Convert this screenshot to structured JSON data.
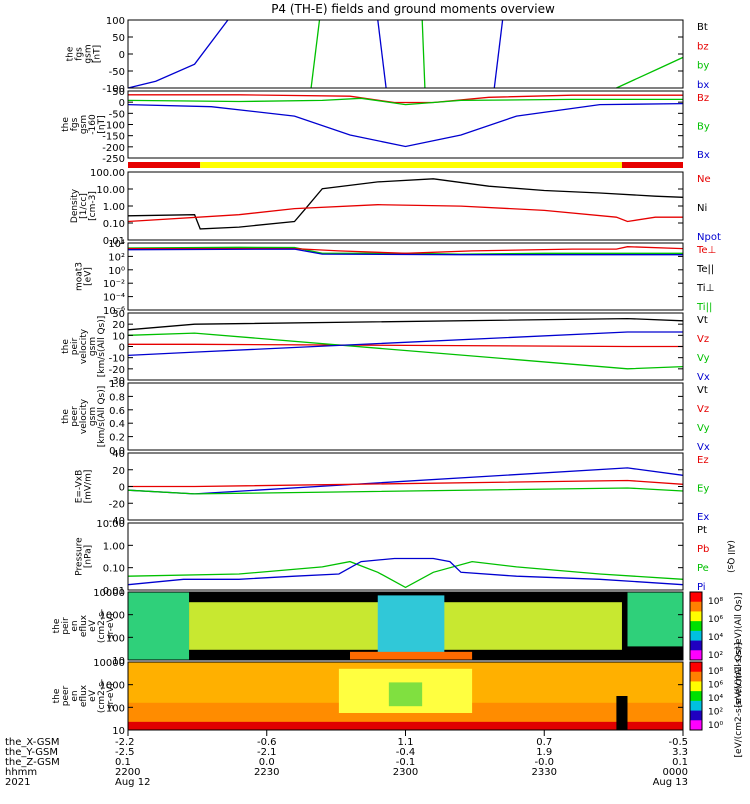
{
  "title": "P4 (TH-E) fields and ground moments overview",
  "colors": {
    "black": "#000000",
    "red": "#e60000",
    "green": "#00c000",
    "blue": "#0000d0",
    "yellow": "#ffff00",
    "orange": "#ff8c00"
  },
  "chart_data": [
    {
      "type": "line",
      "name": "fgs",
      "ylabel": [
        "the",
        "fgs",
        "gsm",
        "[nT]"
      ],
      "ylim": [
        -100,
        100
      ],
      "yticks": [
        "100",
        "50",
        "0",
        "-50",
        "-100"
      ],
      "legend": [
        {
          "label": "Bt",
          "color": "#000000"
        },
        {
          "label": "bz",
          "color": "#e60000"
        },
        {
          "label": "by",
          "color": "#00c000"
        },
        {
          "label": "bx",
          "color": "#0000d0"
        }
      ],
      "series": [
        {
          "name": "bx",
          "color": "#0000d0",
          "x": [
            0,
            0.05,
            0.12,
            0.18
          ],
          "y": [
            -100,
            -80,
            -30,
            100
          ]
        },
        {
          "name": "bx",
          "color": "#0000d0",
          "x": [
            0.45,
            0.465
          ],
          "y": [
            100,
            -100
          ]
        },
        {
          "name": "bx",
          "color": "#0000d0",
          "x": [
            0.66,
            0.675
          ],
          "y": [
            -100,
            100
          ]
        },
        {
          "name": "by",
          "color": "#00c000",
          "x": [
            0.33,
            0.345
          ],
          "y": [
            -100,
            100
          ]
        },
        {
          "name": "by",
          "color": "#00c000",
          "x": [
            0.53,
            0.535
          ],
          "y": [
            100,
            -100
          ]
        },
        {
          "name": "by",
          "color": "#00c000",
          "x": [
            0.88,
            0.92,
            0.96,
            1.0
          ],
          "y": [
            -100,
            -70,
            -40,
            -10
          ]
        }
      ]
    },
    {
      "type": "line",
      "name": "fgs-offset",
      "ylabel": [
        "the",
        "fgs",
        "gsm",
        "-160",
        "[nT]"
      ],
      "ylim": [
        -260,
        60
      ],
      "yticks": [
        "50",
        "0",
        "-50",
        "-100",
        "-150",
        "-200",
        "-250"
      ],
      "legend": [
        {
          "label": "Bz",
          "color": "#e60000"
        },
        {
          "label": "By",
          "color": "#00c000"
        },
        {
          "label": "Bx",
          "color": "#0000d0"
        }
      ],
      "series": [
        {
          "name": "Bz",
          "color": "#e60000",
          "x": [
            0,
            0.2,
            0.4,
            0.48,
            0.55,
            0.65,
            0.8,
            1.0
          ],
          "y": [
            42,
            42,
            35,
            5,
            5,
            30,
            40,
            40
          ]
        },
        {
          "name": "By",
          "color": "#00c000",
          "x": [
            0,
            0.2,
            0.35,
            0.42,
            0.5,
            0.6,
            0.8,
            1.0
          ],
          "y": [
            15,
            10,
            15,
            25,
            -5,
            15,
            20,
            20
          ]
        },
        {
          "name": "Bx",
          "color": "#0000d0",
          "x": [
            0,
            0.15,
            0.3,
            0.4,
            0.5,
            0.6,
            0.7,
            0.85,
            1.0
          ],
          "y": [
            -5,
            -15,
            -60,
            -150,
            -205,
            -150,
            -60,
            -5,
            0
          ]
        }
      ]
    },
    {
      "type": "line",
      "name": "density",
      "ylabel": [
        "Density",
        "[1/cc]",
        "[cm-3]"
      ],
      "ylim": [
        0.005,
        300
      ],
      "log": true,
      "yticks": [
        "100.00",
        "10.00",
        "1.00",
        "0.10",
        "0.01"
      ],
      "legend": [
        {
          "label": "Ne",
          "color": "#e60000"
        },
        {
          "label": "Ni",
          "color": "#000000"
        },
        {
          "label": "Npot",
          "color": "#0000d0"
        }
      ],
      "series": [
        {
          "name": "Ni",
          "color": "#000000",
          "x": [
            0,
            0.12,
            0.13,
            0.2,
            0.3,
            0.32,
            0.35,
            0.45,
            0.55,
            0.65,
            0.75,
            0.85,
            0.95,
            1.0
          ],
          "y": [
            0.25,
            0.3,
            0.03,
            0.04,
            0.1,
            0.8,
            20,
            60,
            100,
            30,
            15,
            10,
            6,
            5
          ]
        },
        {
          "name": "Ne",
          "color": "#e60000",
          "x": [
            0,
            0.2,
            0.3,
            0.45,
            0.6,
            0.75,
            0.88,
            0.9,
            0.95,
            1.0
          ],
          "y": [
            0.1,
            0.3,
            0.8,
            1.5,
            1.2,
            0.6,
            0.2,
            0.1,
            0.2,
            0.2
          ]
        }
      ]
    },
    {
      "type": "line",
      "name": "temperature",
      "ylabel": [
        "moat3",
        "[eV]"
      ],
      "ylim": [
        1e-07,
        10000
      ],
      "log": true,
      "yticks": [
        "10⁴",
        "10²",
        "10⁰",
        "10⁻²",
        "10⁻⁴",
        "10⁻⁶"
      ],
      "legend": [
        {
          "label": "Te⊥",
          "color": "#e60000"
        },
        {
          "label": "Te||",
          "color": "#000000"
        },
        {
          "label": "Ti⊥",
          "color": "#000000"
        },
        {
          "label": "Ti||",
          "color": "#00c000"
        }
      ],
      "series": [
        {
          "name": "Ti||",
          "color": "#00c000",
          "x": [
            0,
            0.2,
            0.3,
            0.35,
            0.5,
            0.6,
            0.75,
            1.0
          ],
          "y": [
            1500,
            2000,
            1800,
            200,
            200,
            150,
            200,
            200
          ]
        },
        {
          "name": "Te⊥",
          "color": "#e60000",
          "x": [
            0,
            0.3,
            0.38,
            0.5,
            0.62,
            0.8,
            0.88,
            0.9,
            1.0
          ],
          "y": [
            1200,
            1200,
            500,
            200,
            500,
            1000,
            1000,
            2500,
            1200
          ]
        },
        {
          "name": "Ti||",
          "color": "#0000d0",
          "x": [
            0,
            0.3,
            0.35,
            0.6,
            1.0
          ],
          "y": [
            800,
            1000,
            150,
            120,
            120
          ]
        }
      ]
    },
    {
      "type": "line",
      "name": "peir-velocity",
      "ylabel": [
        "the",
        "peir",
        "velocity",
        "gsm",
        "[km/s(All Qs)]"
      ],
      "ylim": [
        -30,
        30
      ],
      "yticks": [
        "30",
        "20",
        "10",
        "0",
        "-10",
        "-20",
        "-30"
      ],
      "legend": [
        {
          "label": "Vt",
          "color": "#000000"
        },
        {
          "label": "Vz",
          "color": "#e60000"
        },
        {
          "label": "Vy",
          "color": "#00c000"
        },
        {
          "label": "Vx",
          "color": "#0000d0"
        }
      ],
      "series": [
        {
          "name": "Vt",
          "color": "#000000",
          "x": [
            0,
            0.12,
            0.9,
            1.0
          ],
          "y": [
            15,
            20,
            25,
            23
          ]
        },
        {
          "name": "Vz",
          "color": "#e60000",
          "x": [
            0,
            0.12,
            0.9,
            1.0
          ],
          "y": [
            2,
            2,
            0,
            0
          ]
        },
        {
          "name": "Vy",
          "color": "#00c000",
          "x": [
            0,
            0.12,
            0.9,
            1.0
          ],
          "y": [
            10,
            12,
            -20,
            -18
          ]
        },
        {
          "name": "Vx",
          "color": "#0000d0",
          "x": [
            0,
            0.12,
            0.9,
            1.0
          ],
          "y": [
            -8,
            -5,
            13,
            13
          ]
        }
      ]
    },
    {
      "type": "line",
      "name": "peer-velocity",
      "ylabel": [
        "the",
        "peer",
        "velocity",
        "gsm",
        "[km/s(All Qs)]"
      ],
      "ylim": [
        0,
        1
      ],
      "yticks": [
        "1.0",
        "0.8",
        "0.6",
        "0.4",
        "0.2",
        "0.0"
      ],
      "legend": [
        {
          "label": "Vt",
          "color": "#000000"
        },
        {
          "label": "Vz",
          "color": "#e60000"
        },
        {
          "label": "Vy",
          "color": "#00c000"
        },
        {
          "label": "Vx",
          "color": "#0000d0"
        }
      ],
      "series": []
    },
    {
      "type": "line",
      "name": "efield",
      "ylabel": [
        "E=-VxB",
        "[mV/m]"
      ],
      "ylim": [
        -45,
        45
      ],
      "yticks": [
        "40",
        "20",
        "0",
        "-20",
        "-40"
      ],
      "legend": [
        {
          "label": "Ez",
          "color": "#e60000"
        },
        {
          "label": "Ey",
          "color": "#00c000"
        },
        {
          "label": "Ex",
          "color": "#0000d0"
        }
      ],
      "series": [
        {
          "name": "Ex",
          "color": "#0000d0",
          "x": [
            0,
            0.12,
            0.9,
            1.0
          ],
          "y": [
            -5,
            -10,
            25,
            15
          ]
        },
        {
          "name": "Ez",
          "color": "#e60000",
          "x": [
            0,
            0.12,
            0.9,
            1.0
          ],
          "y": [
            0,
            0,
            8,
            3
          ]
        },
        {
          "name": "Ey",
          "color": "#00c000",
          "x": [
            0,
            0.12,
            0.9,
            1.0
          ],
          "y": [
            -5,
            -10,
            -2,
            -6
          ]
        }
      ]
    },
    {
      "type": "line",
      "name": "pressure",
      "ylabel": [
        "Pressure",
        "[nPa]"
      ],
      "ylim": [
        0.005,
        30
      ],
      "log": true,
      "yticks": [
        "10.00",
        "1.00",
        "0.10",
        "0.01"
      ],
      "legend": [
        {
          "label": "Pt",
          "color": "#000000"
        },
        {
          "label": "Pb",
          "color": "#e60000"
        },
        {
          "label": "Pe",
          "color": "#00c000"
        },
        {
          "label": "Pi",
          "color": "#0000d0"
        }
      ],
      "legend_note": "(All Qs)",
      "series": [
        {
          "name": "Pe",
          "color": "#00c000",
          "x": [
            0,
            0.2,
            0.35,
            0.4,
            0.45,
            0.5,
            0.55,
            0.62,
            0.7,
            0.85,
            1.0
          ],
          "y": [
            0.03,
            0.04,
            0.1,
            0.2,
            0.05,
            0.007,
            0.05,
            0.2,
            0.1,
            0.04,
            0.02
          ]
        },
        {
          "name": "Pi",
          "color": "#0000d0",
          "x": [
            0,
            0.1,
            0.2,
            0.3,
            0.38,
            0.42,
            0.48,
            0.55,
            0.58,
            0.6,
            0.7,
            0.85,
            1.0
          ],
          "y": [
            0.01,
            0.02,
            0.02,
            0.03,
            0.04,
            0.2,
            0.3,
            0.3,
            0.2,
            0.05,
            0.03,
            0.02,
            0.01
          ]
        }
      ]
    },
    {
      "type": "heatmap",
      "name": "peir-spectrogram",
      "ylabel": [
        "the",
        "peir",
        "en",
        "eflux",
        "eV",
        "(cm2-s-",
        "sr-eV)"
      ],
      "ylim": [
        7,
        30000
      ],
      "log": true,
      "yticks": [
        "10000",
        "1000",
        "100",
        "10"
      ]
    },
    {
      "type": "heatmap",
      "name": "peer-spectrogram",
      "ylabel": [
        "the",
        "peer",
        "en",
        "eflux",
        "eV",
        "(cm2-s-",
        "sr-eV)"
      ],
      "ylim": [
        7,
        30000
      ],
      "log": true,
      "yticks": [
        "10000",
        "1000",
        "100",
        "10"
      ]
    }
  ],
  "colorbars": [
    {
      "label": "[eV/(cm2-s-sr-eV)(All Qs)]",
      "ticks": [
        "10⁸",
        "10⁶",
        "10⁴",
        "10²"
      ]
    },
    {
      "label": "[eV/(cm2-s-sr-eV)(All Qs)]",
      "ticks": [
        "10⁸",
        "10⁶",
        "10⁴",
        "10²",
        "10⁰"
      ]
    }
  ],
  "xaxis": {
    "rows": [
      {
        "label": "the_X-GSM",
        "values": [
          "-2.2",
          "-0.6",
          "1.1",
          "0.7",
          "-0.5"
        ]
      },
      {
        "label": "the_Y-GSM",
        "values": [
          "-2.5",
          "-2.1",
          "-0.4",
          "1.9",
          "3.3"
        ]
      },
      {
        "label": "the_Z-GSM",
        "values": [
          "0.1",
          "0.0",
          "-0.1",
          "-0.0",
          "0.1"
        ]
      },
      {
        "label": "hhmm",
        "values": [
          "2200",
          "2230",
          "2300",
          "2330",
          "0000"
        ]
      },
      {
        "label": "2021",
        "values": [
          "Aug 12",
          "",
          "",
          "",
          "Aug 13"
        ]
      }
    ]
  }
}
